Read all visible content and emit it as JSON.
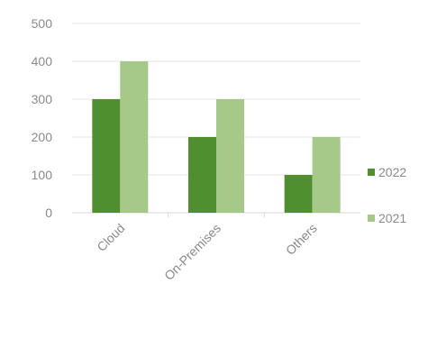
{
  "chart_data": {
    "type": "bar",
    "categories": [
      "Cloud",
      "On-Premises",
      "Others"
    ],
    "series": [
      {
        "name": "2022",
        "values": [
          300,
          200,
          100
        ],
        "color": "#4f8f2f"
      },
      {
        "name": "2021",
        "values": [
          400,
          300,
          200
        ],
        "color": "#a6c98a"
      }
    ],
    "ylim": [
      0,
      500
    ],
    "y_ticks": [
      0,
      100,
      200,
      300,
      400,
      500
    ],
    "grid": true,
    "legend_position": "right",
    "legend_order": [
      "2022",
      "2021"
    ]
  }
}
